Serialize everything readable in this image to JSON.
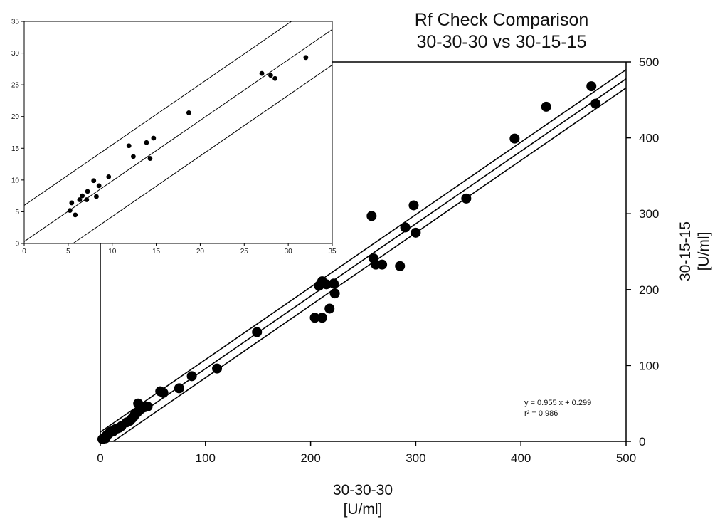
{
  "chart_data": [
    {
      "type": "scatter",
      "title_lines": [
        "Rf Check Comparison",
        "30-30-30 vs 30-15-15"
      ],
      "xlabel": "30-30-30",
      "xunit": "[U/ml]",
      "ylabel": "30-15-15",
      "yunit": "[U/ml]",
      "xlim": [
        0,
        500
      ],
      "ylim": [
        0,
        500
      ],
      "xticks": [
        0,
        100,
        200,
        300,
        400,
        500
      ],
      "yticks": [
        0,
        100,
        200,
        300,
        400,
        500
      ],
      "y_axis_side": "right",
      "grid": false,
      "regression": {
        "slope": 0.955,
        "intercept": 0.299,
        "band": 12
      },
      "annotation_lines": [
        "y = 0.955 x + 0.299",
        "r² = 0.986"
      ],
      "points": [
        [
          2,
          3
        ],
        [
          4,
          5
        ],
        [
          5,
          4
        ],
        [
          6,
          8
        ],
        [
          7,
          9
        ],
        [
          8,
          10
        ],
        [
          9,
          12
        ],
        [
          10,
          13
        ],
        [
          12,
          13
        ],
        [
          14,
          16
        ],
        [
          16,
          17
        ],
        [
          18,
          18
        ],
        [
          20,
          20
        ],
        [
          25,
          25
        ],
        [
          28,
          27
        ],
        [
          30,
          30
        ],
        [
          32,
          33
        ],
        [
          33,
          36
        ],
        [
          35,
          38
        ],
        [
          36,
          50
        ],
        [
          38,
          42
        ],
        [
          40,
          44
        ],
        [
          42,
          45
        ],
        [
          45,
          46
        ],
        [
          57,
          66
        ],
        [
          60,
          64
        ],
        [
          75,
          70
        ],
        [
          87,
          86
        ],
        [
          111,
          96
        ],
        [
          149,
          144
        ],
        [
          204,
          163
        ],
        [
          211,
          163
        ],
        [
          208,
          205
        ],
        [
          211,
          211
        ],
        [
          215,
          207
        ],
        [
          218,
          175
        ],
        [
          223,
          195
        ],
        [
          222,
          208
        ],
        [
          258,
          297
        ],
        [
          260,
          241
        ],
        [
          262,
          233
        ],
        [
          268,
          233
        ],
        [
          285,
          231
        ],
        [
          290,
          282
        ],
        [
          298,
          311
        ],
        [
          300,
          275
        ],
        [
          348,
          320
        ],
        [
          394,
          399
        ],
        [
          424,
          441
        ],
        [
          467,
          468
        ],
        [
          471,
          445
        ]
      ]
    },
    {
      "type": "scatter",
      "xlim": [
        0,
        35
      ],
      "ylim": [
        0,
        35
      ],
      "xticks": [
        0,
        5,
        10,
        15,
        20,
        25,
        30,
        35
      ],
      "yticks": [
        0,
        5,
        10,
        15,
        20,
        25,
        30,
        35
      ],
      "grid": false,
      "lines": [
        {
          "slope": 0.955,
          "intercept": 6.0
        },
        {
          "slope": 0.955,
          "intercept": 0.3
        },
        {
          "slope": 0.955,
          "intercept": -5.3
        }
      ],
      "points": [
        [
          5.2,
          5.2
        ],
        [
          5.4,
          6.4
        ],
        [
          5.8,
          4.5
        ],
        [
          6.3,
          6.9
        ],
        [
          6.6,
          7.5
        ],
        [
          7.1,
          6.9
        ],
        [
          7.2,
          8.2
        ],
        [
          7.9,
          9.9
        ],
        [
          8.2,
          7.4
        ],
        [
          8.5,
          9.1
        ],
        [
          9.6,
          10.5
        ],
        [
          11.9,
          15.4
        ],
        [
          12.4,
          13.7
        ],
        [
          13.9,
          15.9
        ],
        [
          14.3,
          13.4
        ],
        [
          14.7,
          16.6
        ],
        [
          18.7,
          20.6
        ],
        [
          27.0,
          26.8
        ],
        [
          28.0,
          26.5
        ],
        [
          28.5,
          26.0
        ],
        [
          32.0,
          29.3
        ]
      ]
    }
  ]
}
